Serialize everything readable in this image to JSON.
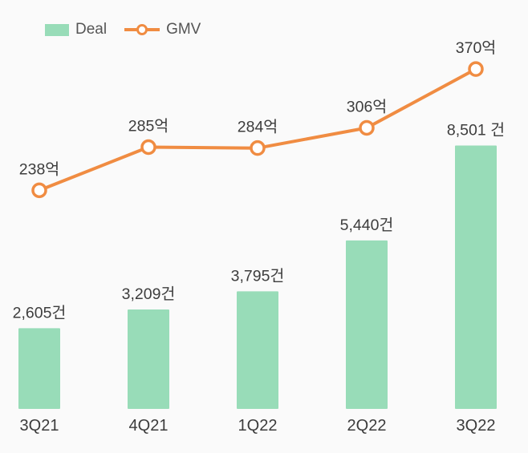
{
  "legend": {
    "deal_label": "Deal",
    "gmv_label": "GMV"
  },
  "colors": {
    "bar": "#98dcb8",
    "line": "#f08c42",
    "marker_fill": "#ffffff",
    "data_label_text": "#3d3d3d",
    "axis_label_text": "#3c3c3c",
    "legend_text": "#555555",
    "background": "#fafafa"
  },
  "chart_data": {
    "type": "combo",
    "title": "",
    "grid": false,
    "legend_position": "top-left",
    "categories": [
      "3Q21",
      "4Q21",
      "1Q22",
      "2Q22",
      "3Q22"
    ],
    "series": [
      {
        "name": "Deal",
        "type": "bar",
        "values": [
          2605,
          3209,
          3795,
          5440,
          8501
        ],
        "labels": [
          "2,605건",
          "3,209건",
          "3,795건",
          "5,440건",
          "8,501 건"
        ],
        "ylim": [
          0,
          11000
        ]
      },
      {
        "name": "GMV",
        "type": "line",
        "values": [
          238,
          285,
          284,
          306,
          370
        ],
        "labels": [
          "238억",
          "285억",
          "284억",
          "306억",
          "370억"
        ],
        "ylim": [
          0,
          371
        ]
      }
    ]
  }
}
